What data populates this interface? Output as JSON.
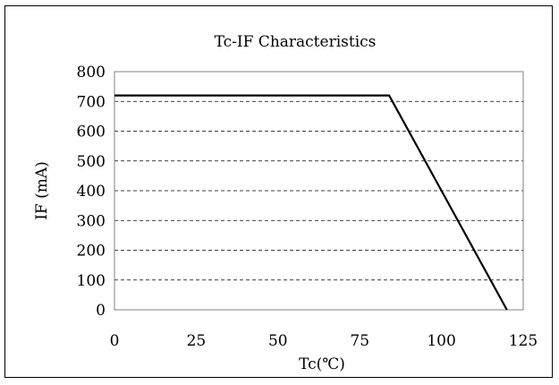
{
  "chart_data": {
    "type": "line",
    "title": "Tc-IF Characteristics",
    "xlabel": "Tc(℃)",
    "ylabel": "IF (mA)",
    "xlim": [
      0,
      125
    ],
    "ylim": [
      0,
      800
    ],
    "xticks": [
      "0",
      "25",
      "50",
      "75",
      "100",
      "125"
    ],
    "yticks": [
      "0",
      "100",
      "200",
      "300",
      "400",
      "500",
      "600",
      "700",
      "800"
    ],
    "grid": "horizontal dashed",
    "legend": "none",
    "series": [
      {
        "x": [
          0,
          84,
          120
        ],
        "y": [
          720,
          720,
          0
        ],
        "color": "#000000"
      }
    ]
  }
}
